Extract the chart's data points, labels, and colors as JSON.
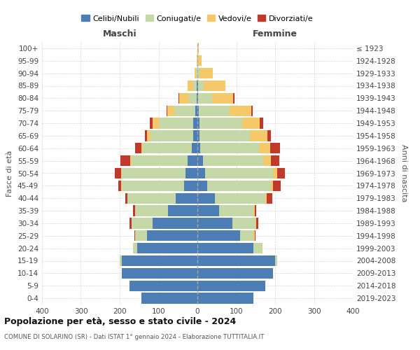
{
  "age_groups": [
    "0-4",
    "5-9",
    "10-14",
    "15-19",
    "20-24",
    "25-29",
    "30-34",
    "35-39",
    "40-44",
    "45-49",
    "50-54",
    "55-59",
    "60-64",
    "65-69",
    "70-74",
    "75-79",
    "80-84",
    "85-89",
    "90-94",
    "95-99",
    "100+"
  ],
  "birth_years": [
    "2019-2023",
    "2014-2018",
    "2009-2013",
    "2004-2008",
    "1999-2003",
    "1994-1998",
    "1989-1993",
    "1984-1988",
    "1979-1983",
    "1974-1978",
    "1969-1973",
    "1964-1968",
    "1959-1963",
    "1954-1958",
    "1949-1953",
    "1944-1948",
    "1939-1943",
    "1934-1938",
    "1929-1933",
    "1924-1928",
    "≤ 1923"
  ],
  "colors": {
    "celibi": "#4d7db5",
    "coniugati": "#c5d9a8",
    "vedovi": "#f5c96a",
    "divorziati": "#c0392b"
  },
  "maschi": {
    "celibi": [
      145,
      175,
      195,
      195,
      155,
      130,
      115,
      75,
      55,
      35,
      30,
      25,
      15,
      10,
      10,
      5,
      2,
      2,
      0,
      0,
      0
    ],
    "coniugati": [
      0,
      0,
      0,
      5,
      10,
      30,
      55,
      85,
      125,
      160,
      165,
      145,
      125,
      110,
      90,
      55,
      20,
      8,
      3,
      0,
      0
    ],
    "vedovi": [
      0,
      0,
      0,
      0,
      0,
      0,
      0,
      0,
      0,
      1,
      2,
      3,
      5,
      10,
      15,
      18,
      25,
      15,
      5,
      1,
      0
    ],
    "divorziati": [
      0,
      0,
      0,
      0,
      0,
      2,
      5,
      5,
      5,
      8,
      15,
      25,
      15,
      5,
      8,
      2,
      2,
      0,
      0,
      0,
      0
    ]
  },
  "femmine": {
    "celibi": [
      145,
      175,
      195,
      200,
      145,
      110,
      90,
      55,
      45,
      25,
      20,
      15,
      8,
      5,
      5,
      3,
      2,
      2,
      0,
      0,
      0
    ],
    "coniugati": [
      0,
      0,
      0,
      5,
      20,
      35,
      60,
      90,
      130,
      165,
      175,
      155,
      150,
      130,
      110,
      80,
      35,
      15,
      5,
      1,
      0
    ],
    "vedovi": [
      0,
      0,
      0,
      0,
      2,
      2,
      2,
      2,
      3,
      5,
      10,
      20,
      30,
      45,
      45,
      55,
      55,
      55,
      35,
      10,
      3
    ],
    "divorziati": [
      0,
      0,
      0,
      0,
      0,
      2,
      5,
      5,
      15,
      20,
      20,
      20,
      25,
      10,
      10,
      5,
      3,
      0,
      0,
      0,
      0
    ]
  },
  "xlim": 400,
  "title": "Popolazione per età, sesso e stato civile - 2024",
  "subtitle": "COMUNE DI SOLARINO (SR) - Dati ISTAT 1° gennaio 2024 - Elaborazione TUTTITALIA.IT",
  "xlabel_left": "Maschi",
  "xlabel_right": "Femmine",
  "ylabel_left": "Fasce di età",
  "ylabel_right": "Anni di nascita"
}
